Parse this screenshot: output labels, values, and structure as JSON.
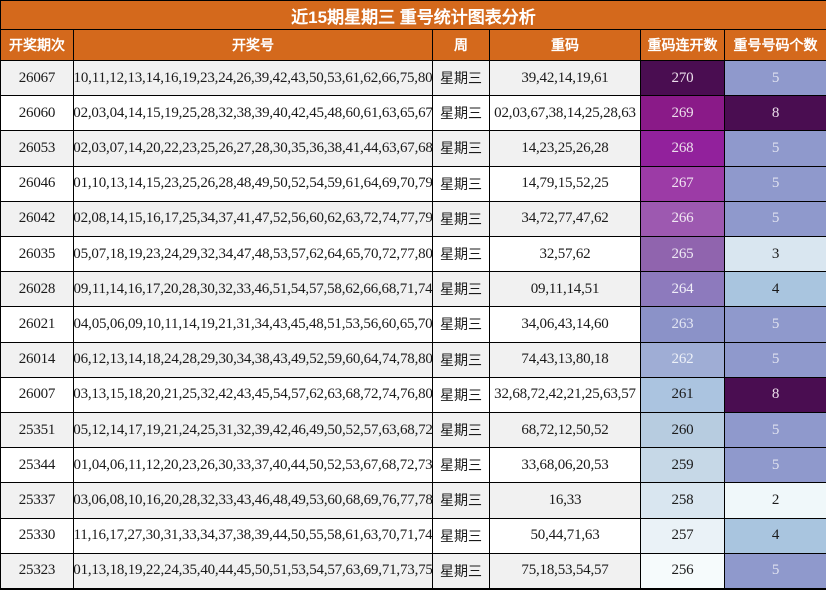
{
  "title": "近15期星期三 重号统计图表分析",
  "colors": {
    "header_bg": "#d4691c",
    "header_text": "#ffffff",
    "border": "#000000",
    "row_alt_bg": "#f1f1f1",
    "row_plain_bg": "#ffffff"
  },
  "chart_data": {
    "type": "table",
    "title": "近15期星期三 重号统计图表分析",
    "columns": [
      "开奖期次",
      "开奖号",
      "周",
      "重码",
      "重码连开数",
      "重号号码个数"
    ],
    "rows": [
      {
        "period": "26067",
        "numbers": "10,11,12,13,14,16,19,23,24,26,39,42,43,50,53,61,62,66,75,80",
        "week": "星期三",
        "repeat_codes": "39,42,14,19,61",
        "streak": "270",
        "streak_bg": "#4a0d51",
        "streak_fg": "#ecdfec",
        "repeat_count": "5",
        "count_bg": "#8f99cc",
        "count_fg": "#dfe1ef"
      },
      {
        "period": "26060",
        "numbers": "02,03,04,14,15,19,25,28,32,38,39,40,42,45,48,60,61,63,65,67",
        "week": "星期三",
        "repeat_codes": "02,03,67,38,14,25,28,63",
        "streak": "269",
        "streak_bg": "#8a1a88",
        "streak_fg": "#ecdfec",
        "repeat_count": "8",
        "count_bg": "#4a0d51",
        "count_fg": "#ecdfec"
      },
      {
        "period": "26053",
        "numbers": "02,03,07,14,20,22,23,25,26,27,28,30,35,36,38,41,44,63,67,68",
        "week": "星期三",
        "repeat_codes": "14,23,25,26,28",
        "streak": "268",
        "streak_bg": "#92219c",
        "streak_fg": "#ecdfec",
        "repeat_count": "5",
        "count_bg": "#8f99cc",
        "count_fg": "#dfe1ef"
      },
      {
        "period": "26046",
        "numbers": "01,10,13,14,15,23,25,26,28,48,49,50,52,54,59,61,64,69,70,79",
        "week": "星期三",
        "repeat_codes": "14,79,15,52,25",
        "streak": "267",
        "streak_bg": "#9c3ba6",
        "streak_fg": "#f0e4f2",
        "repeat_count": "5",
        "count_bg": "#8f99cc",
        "count_fg": "#dfe1ef"
      },
      {
        "period": "26042",
        "numbers": "02,08,14,15,16,17,25,34,37,41,47,52,56,60,62,63,72,74,77,79",
        "week": "星期三",
        "repeat_codes": "34,72,77,47,62",
        "streak": "266",
        "streak_bg": "#9d59b0",
        "streak_fg": "#f2e9f4",
        "repeat_count": "5",
        "count_bg": "#8f99cc",
        "count_fg": "#dfe1ef"
      },
      {
        "period": "26035",
        "numbers": "05,07,18,19,23,24,29,32,34,47,48,53,57,62,64,65,70,72,77,80",
        "week": "星期三",
        "repeat_codes": "32,57,62",
        "streak": "265",
        "streak_bg": "#9064ae",
        "streak_fg": "#efeaf5",
        "repeat_count": "3",
        "count_bg": "#d9e6f0",
        "count_fg": "#1a1a1a"
      },
      {
        "period": "26028",
        "numbers": "09,11,14,16,17,20,28,30,32,33,46,51,54,57,58,62,66,68,71,74",
        "week": "星期三",
        "repeat_codes": "09,11,14,51",
        "streak": "264",
        "streak_bg": "#8d7abd",
        "streak_fg": "#f0eef8",
        "repeat_count": "4",
        "count_bg": "#a9c5df",
        "count_fg": "#1a1a1a"
      },
      {
        "period": "26021",
        "numbers": "04,05,06,09,10,11,14,19,21,31,34,43,45,48,51,53,56,60,65,70",
        "week": "星期三",
        "repeat_codes": "34,06,43,14,60",
        "streak": "263",
        "streak_bg": "#8b92c8",
        "streak_fg": "#e3e6f3",
        "repeat_count": "5",
        "count_bg": "#8f99cc",
        "count_fg": "#dfe1ef"
      },
      {
        "period": "26014",
        "numbers": "06,12,13,14,18,24,28,29,30,34,38,43,49,52,59,60,64,74,78,80",
        "week": "星期三",
        "repeat_codes": "74,43,13,80,18",
        "streak": "262",
        "streak_bg": "#9fadd5",
        "streak_fg": "#edf1f8",
        "repeat_count": "5",
        "count_bg": "#8f99cc",
        "count_fg": "#dfe1ef"
      },
      {
        "period": "26007",
        "numbers": "03,13,15,18,20,21,25,32,42,43,45,54,57,62,63,68,72,74,76,80",
        "week": "星期三",
        "repeat_codes": "32,68,72,42,21,25,63,57",
        "streak": "261",
        "streak_bg": "#abc4e0",
        "streak_fg": "#1a1a1a",
        "repeat_count": "8",
        "count_bg": "#4a0d51",
        "count_fg": "#ecdfec"
      },
      {
        "period": "25351",
        "numbers": "05,12,14,17,19,21,24,25,31,32,39,42,46,49,50,52,57,63,68,72",
        "week": "星期三",
        "repeat_codes": "68,72,12,50,52",
        "streak": "260",
        "streak_bg": "#b7cce0",
        "streak_fg": "#1a1a1a",
        "repeat_count": "5",
        "count_bg": "#8f99cc",
        "count_fg": "#dfe1ef"
      },
      {
        "period": "25344",
        "numbers": "01,04,06,11,12,20,23,26,30,33,37,40,44,50,52,53,67,68,72,73",
        "week": "星期三",
        "repeat_codes": "33,68,06,20,53",
        "streak": "259",
        "streak_bg": "#c6d8e7",
        "streak_fg": "#1a1a1a",
        "repeat_count": "5",
        "count_bg": "#8f99cc",
        "count_fg": "#dfe1ef"
      },
      {
        "period": "25337",
        "numbers": "03,06,08,10,16,20,28,32,33,43,46,48,49,53,60,68,69,76,77,78",
        "week": "星期三",
        "repeat_codes": "16,33",
        "streak": "258",
        "streak_bg": "#d9e6f0",
        "streak_fg": "#1a1a1a",
        "repeat_count": "2",
        "count_bg": "#f0f8fa",
        "count_fg": "#1a1a1a"
      },
      {
        "period": "25330",
        "numbers": "11,16,17,27,30,31,33,34,37,38,39,44,50,55,58,61,63,70,71,74",
        "week": "星期三",
        "repeat_codes": "50,44,71,63",
        "streak": "257",
        "streak_bg": "#eaf2f7",
        "streak_fg": "#1a1a1a",
        "repeat_count": "4",
        "count_bg": "#a9c5df",
        "count_fg": "#1a1a1a"
      },
      {
        "period": "25323",
        "numbers": "01,13,18,19,22,24,35,40,44,45,50,51,53,54,57,63,69,71,73,75",
        "week": "星期三",
        "repeat_codes": "75,18,53,54,57",
        "streak": "256",
        "streak_bg": "#f6fbfc",
        "streak_fg": "#1a1a1a",
        "repeat_count": "5",
        "count_bg": "#8f99cc",
        "count_fg": "#dfe1ef"
      }
    ]
  }
}
